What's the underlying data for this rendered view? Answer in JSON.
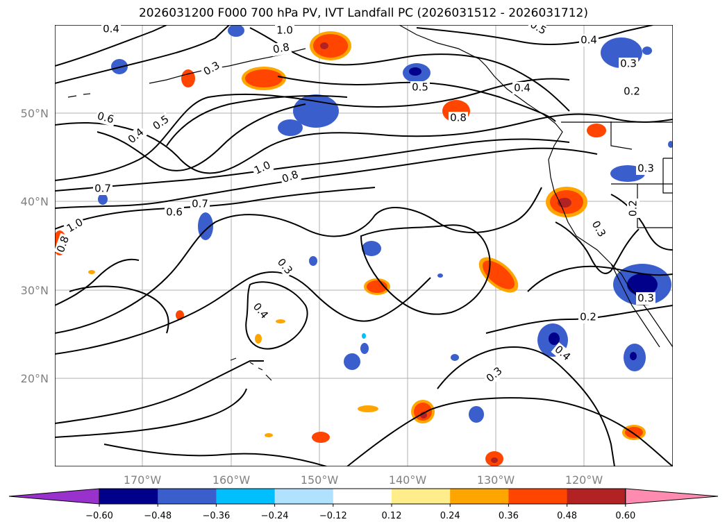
{
  "figure": {
    "title": "2026031200 F000 700 hPa PV, IVT Landfall PC (2026031512 - 2026031712)"
  },
  "map": {
    "longitude_labels": [
      "170°W",
      "160°W",
      "150°W",
      "140°W",
      "130°W",
      "120°W"
    ],
    "latitude_labels": [
      "50°N",
      "40°N",
      "30°N",
      "20°N"
    ],
    "contour_labels": [
      "0.4",
      "1.0",
      "0.8",
      "0.5",
      "0.4",
      "0.6",
      "0.3",
      "0.5",
      "0.4",
      "0.2",
      "0.3",
      "0.4",
      "0.5",
      "0.8",
      "1.0",
      "0.8",
      "0.3",
      "0.7",
      "0.7",
      "0.6",
      "1.0",
      "0.8",
      "0.2",
      "0.3",
      "0.3",
      "0.4",
      "0.3",
      "0.3",
      "0.4",
      "0.2"
    ]
  },
  "colorbar": {
    "tick_labels": [
      "−0.60",
      "−0.48",
      "−0.36",
      "−0.24",
      "−0.12",
      "0.12",
      "0.24",
      "0.36",
      "0.48",
      "0.60"
    ],
    "colors": [
      "#9932cc",
      "#00008b",
      "#3a5fcd",
      "#00bfff",
      "#b0e2ff",
      "#ffffff",
      "#ffec8b",
      "#ffa500",
      "#ff4500",
      "#b22222",
      "#ff8cb0"
    ]
  }
}
